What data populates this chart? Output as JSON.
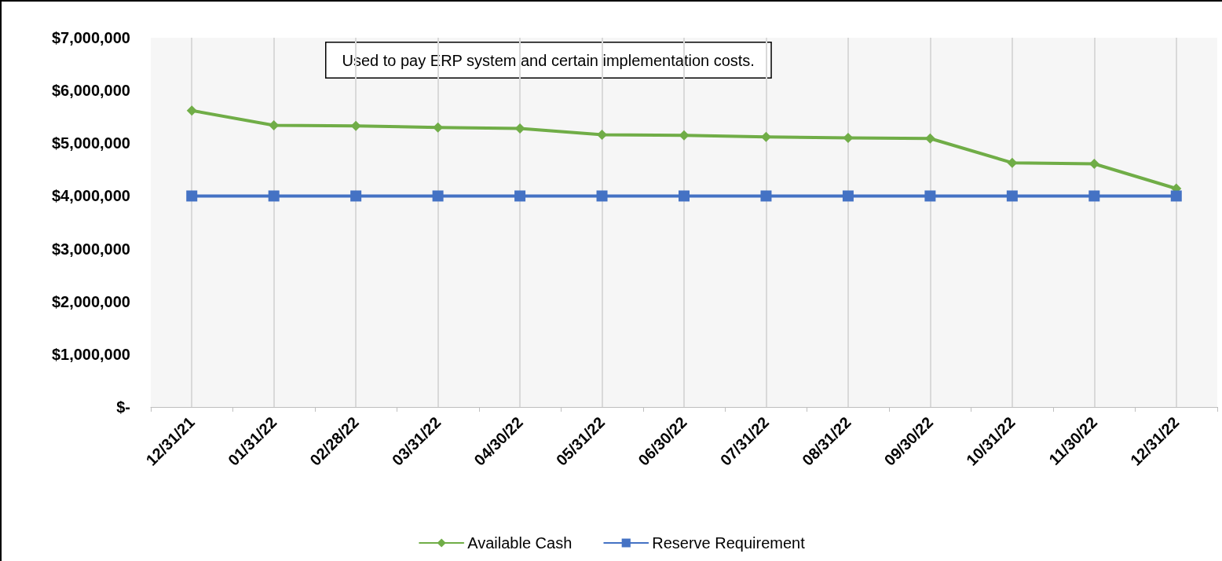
{
  "chart_data": {
    "type": "line",
    "categories": [
      "12/31/21",
      "01/31/22",
      "02/28/22",
      "03/31/22",
      "04/30/22",
      "05/31/22",
      "06/30/22",
      "07/31/22",
      "08/31/22",
      "09/30/22",
      "10/31/22",
      "11/30/22",
      "12/31/22"
    ],
    "series": [
      {
        "name": "Available Cash",
        "color": "#70ad47",
        "marker": "diamond",
        "values": [
          5620000,
          5340000,
          5330000,
          5300000,
          5280000,
          5160000,
          5150000,
          5120000,
          5100000,
          5090000,
          4630000,
          4610000,
          4140000
        ]
      },
      {
        "name": "Reserve Requirement",
        "color": "#4472c4",
        "marker": "square",
        "values": [
          4000000,
          4000000,
          4000000,
          4000000,
          4000000,
          4000000,
          4000000,
          4000000,
          4000000,
          4000000,
          4000000,
          4000000,
          4000000
        ]
      }
    ],
    "ylim": [
      0,
      7000000
    ],
    "yticks": [
      {
        "value": 0,
        "label": "$-"
      },
      {
        "value": 1000000,
        "label": "$1,000,000"
      },
      {
        "value": 2000000,
        "label": "$2,000,000"
      },
      {
        "value": 3000000,
        "label": "$3,000,000"
      },
      {
        "value": 4000000,
        "label": "$4,000,000"
      },
      {
        "value": 5000000,
        "label": "$5,000,000"
      },
      {
        "value": 6000000,
        "label": "$6,000,000"
      },
      {
        "value": 7000000,
        "label": "$7,000,000"
      }
    ],
    "grid": "x",
    "legend": "bottom",
    "line_style": "solid",
    "annotations": [
      "Used to pay ERP system and certain implementation costs."
    ]
  }
}
